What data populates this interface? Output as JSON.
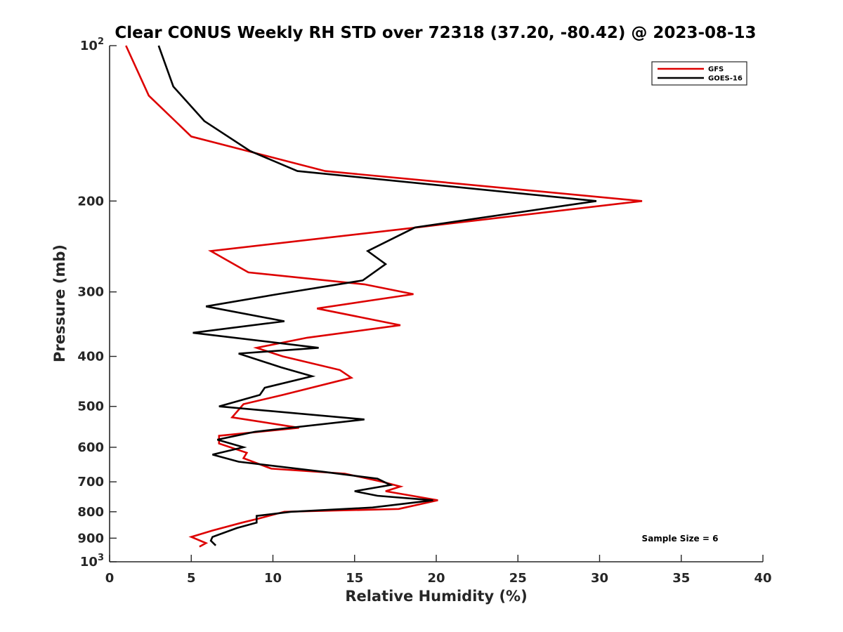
{
  "chart_data": {
    "type": "line",
    "title": "Clear CONUS Weekly RH STD over 72318 (37.20, -80.42) @ 2023-08-13",
    "xlabel": "Relative Humidity (%)",
    "ylabel": "Pressure (mb)",
    "xlim": [
      0,
      40
    ],
    "ylim": [
      100,
      1000
    ],
    "y_scale": "log",
    "y_reversed": true,
    "x_ticks": [
      0,
      5,
      10,
      15,
      20,
      25,
      30,
      35,
      40
    ],
    "x_tick_labels": [
      "0",
      "5",
      "10",
      "15",
      "20",
      "25",
      "30",
      "35",
      "40"
    ],
    "y_ticks": [
      {
        "value": 100,
        "base": "10",
        "exp": "2"
      },
      {
        "value": 200,
        "label": "200"
      },
      {
        "value": 300,
        "label": "300"
      },
      {
        "value": 400,
        "label": "400"
      },
      {
        "value": 500,
        "label": "500"
      },
      {
        "value": 600,
        "label": "600"
      },
      {
        "value": 700,
        "label": "700"
      },
      {
        "value": 800,
        "label": "800"
      },
      {
        "value": 900,
        "label": "900"
      },
      {
        "value": 1000,
        "base": "10",
        "exp": "3"
      }
    ],
    "grid": false,
    "legend_position": "top-right",
    "annotation": "Sample Size = 6",
    "series": [
      {
        "name": "GFS",
        "color": "#dd0000",
        "points": [
          [
            1.0,
            100
          ],
          [
            2.4,
            125
          ],
          [
            5.0,
            150
          ],
          [
            13.2,
            175
          ],
          [
            32.6,
            200
          ],
          [
            18.8,
            225
          ],
          [
            6.2,
            250
          ],
          [
            8.5,
            275
          ],
          [
            15.6,
            290
          ],
          [
            18.6,
            303
          ],
          [
            12.7,
            323
          ],
          [
            17.8,
            348
          ],
          [
            12.1,
            368
          ],
          [
            9.0,
            385
          ],
          [
            10.6,
            400
          ],
          [
            14.1,
            425
          ],
          [
            14.8,
            440
          ],
          [
            10.6,
            475
          ],
          [
            8.2,
            495
          ],
          [
            7.5,
            525
          ],
          [
            11.6,
            550
          ],
          [
            6.7,
            570
          ],
          [
            6.7,
            590
          ],
          [
            8.4,
            615
          ],
          [
            8.2,
            630
          ],
          [
            9.9,
            660
          ],
          [
            14.4,
            675
          ],
          [
            16.7,
            700
          ],
          [
            17.8,
            715
          ],
          [
            16.9,
            730
          ],
          [
            20.1,
            760
          ],
          [
            17.7,
            790
          ],
          [
            10.7,
            800
          ],
          [
            9.1,
            825
          ],
          [
            8.1,
            840
          ],
          [
            6.3,
            870
          ],
          [
            5.0,
            895
          ],
          [
            5.9,
            920
          ],
          [
            5.5,
            935
          ]
        ]
      },
      {
        "name": "GOES-16",
        "color": "#000000",
        "points": [
          [
            3.0,
            100
          ],
          [
            3.9,
            120
          ],
          [
            5.8,
            140
          ],
          [
            8.6,
            160
          ],
          [
            11.5,
            175
          ],
          [
            29.8,
            200
          ],
          [
            18.7,
            225
          ],
          [
            15.8,
            250
          ],
          [
            16.9,
            265
          ],
          [
            15.5,
            285
          ],
          [
            10.3,
            303
          ],
          [
            5.9,
            320
          ],
          [
            10.7,
            342
          ],
          [
            5.1,
            360
          ],
          [
            12.8,
            385
          ],
          [
            7.9,
            395
          ],
          [
            10.5,
            420
          ],
          [
            12.4,
            437
          ],
          [
            9.5,
            460
          ],
          [
            9.2,
            475
          ],
          [
            6.7,
            500
          ],
          [
            15.6,
            530
          ],
          [
            8.9,
            560
          ],
          [
            6.6,
            580
          ],
          [
            8.2,
            600
          ],
          [
            6.3,
            620
          ],
          [
            7.9,
            640
          ],
          [
            13.2,
            670
          ],
          [
            16.4,
            690
          ],
          [
            17.2,
            710
          ],
          [
            15.0,
            730
          ],
          [
            16.4,
            745
          ],
          [
            19.8,
            760
          ],
          [
            16.1,
            785
          ],
          [
            11.1,
            800
          ],
          [
            9.0,
            815
          ],
          [
            9.0,
            840
          ],
          [
            7.8,
            860
          ],
          [
            6.3,
            895
          ],
          [
            6.2,
            910
          ],
          [
            6.5,
            930
          ]
        ]
      }
    ]
  }
}
